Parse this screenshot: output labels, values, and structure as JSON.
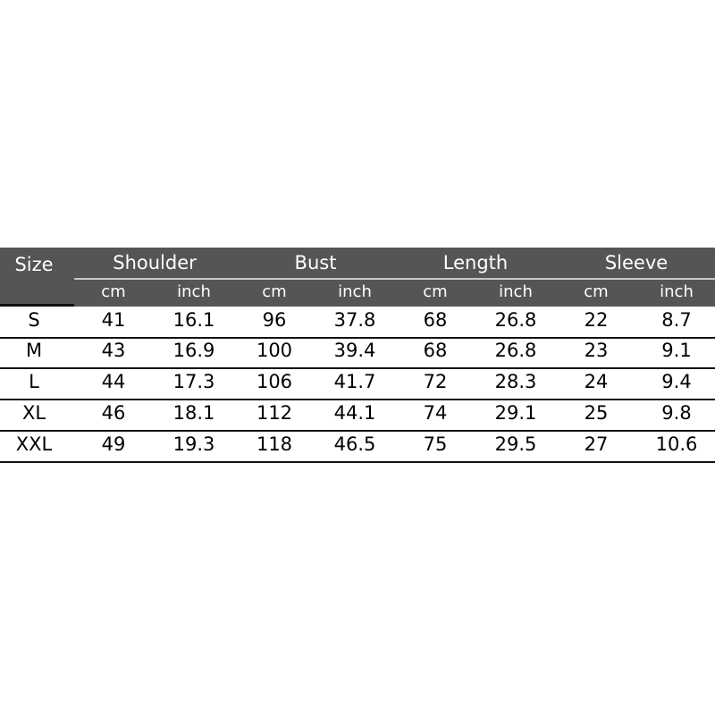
{
  "table": {
    "size_header": "Size",
    "groups": [
      "Shoulder",
      "Bust",
      "Length",
      "Sleeve"
    ],
    "units": [
      "cm",
      "inch",
      "cm",
      "inch",
      "cm",
      "inch",
      "cm",
      "inch"
    ],
    "rows": [
      {
        "size": "S",
        "values": [
          "41",
          "16.1",
          "96",
          "37.8",
          "68",
          "26.8",
          "22",
          "8.7"
        ]
      },
      {
        "size": "M",
        "values": [
          "43",
          "16.9",
          "100",
          "39.4",
          "68",
          "26.8",
          "23",
          "9.1"
        ]
      },
      {
        "size": "L",
        "values": [
          "44",
          "17.3",
          "106",
          "41.7",
          "72",
          "28.3",
          "24",
          "9.4"
        ]
      },
      {
        "size": "XL",
        "values": [
          "46",
          "18.1",
          "112",
          "44.1",
          "74",
          "29.1",
          "25",
          "9.8"
        ]
      },
      {
        "size": "XXL",
        "values": [
          "49",
          "19.3",
          "118",
          "46.5",
          "75",
          "29.5",
          "27",
          "10.6"
        ]
      }
    ],
    "header_color": "#555555"
  }
}
